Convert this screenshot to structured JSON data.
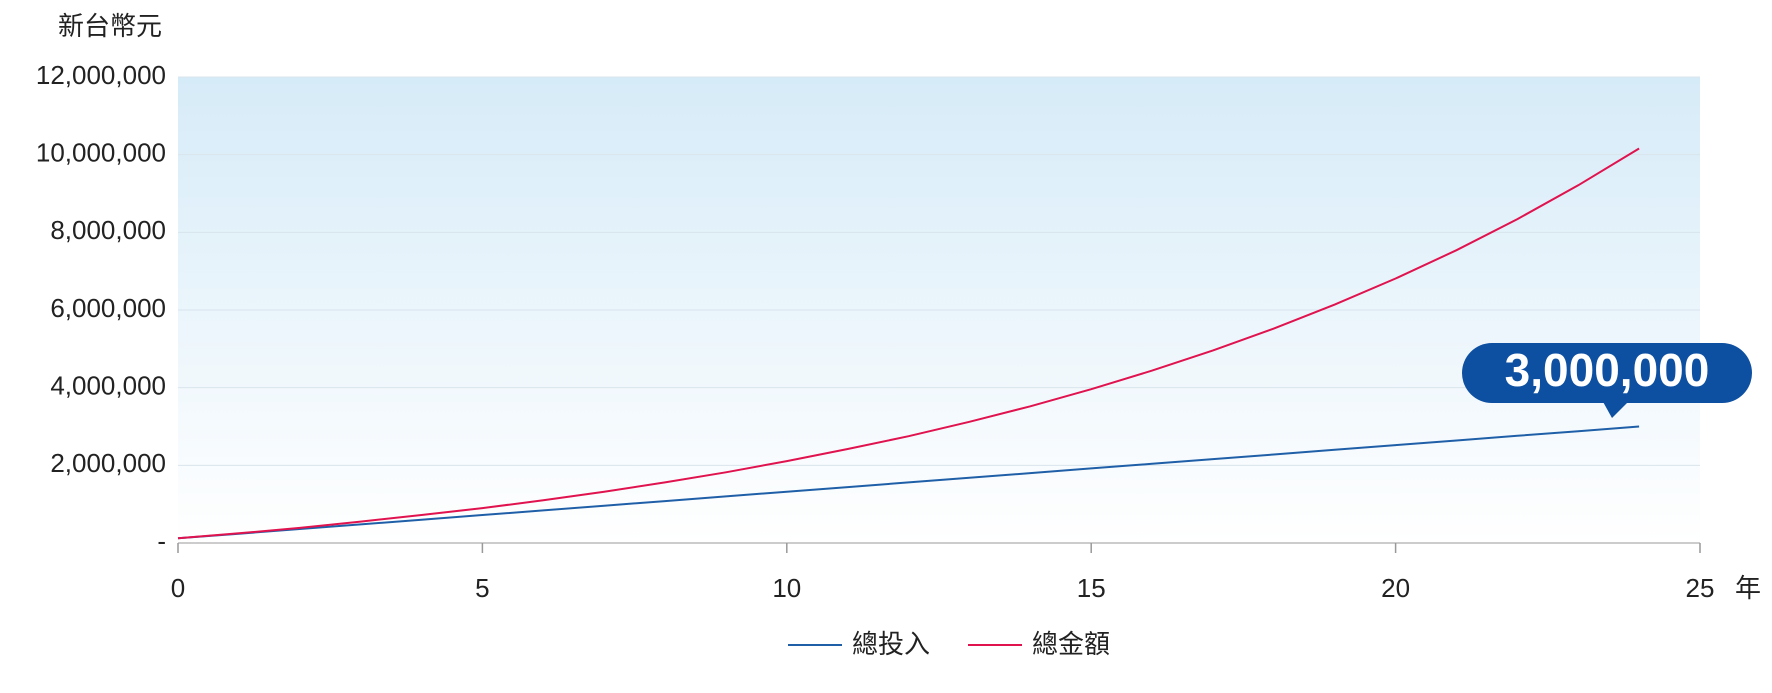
{
  "chart_data": {
    "type": "line",
    "y_label": "新台幣元",
    "x_label": "年",
    "annotation": "3,000,000",
    "x": [
      0,
      1,
      2,
      3,
      4,
      5,
      6,
      7,
      8,
      9,
      10,
      11,
      12,
      13,
      14,
      15,
      16,
      17,
      18,
      19,
      20,
      21,
      22,
      23,
      24
    ],
    "series": [
      {
        "name": "總投入",
        "color": "#1f5fa8",
        "values": [
          120000,
          240000,
          360000,
          480000,
          600000,
          720000,
          840000,
          960000,
          1080000,
          1200000,
          1320000,
          1440000,
          1560000,
          1680000,
          1800000,
          1920000,
          2040000,
          2160000,
          2280000,
          2400000,
          2520000,
          2640000,
          2760000,
          2880000,
          3000000
        ]
      },
      {
        "name": "總金額",
        "color": "#e0134f",
        "values": [
          120000,
          250000,
          390000,
          550000,
          720000,
          900000,
          1100000,
          1320000,
          1560000,
          1820000,
          2110000,
          2420000,
          2750000,
          3120000,
          3520000,
          3960000,
          4440000,
          4960000,
          5520000,
          6140000,
          6810000,
          7540000,
          8340000,
          9210000,
          10160000
        ]
      }
    ],
    "xlim": [
      0,
      25
    ],
    "xticks": [
      0,
      5,
      10,
      15,
      20,
      25
    ],
    "ylim": [
      0,
      12000000
    ],
    "yticks": [
      {
        "value": 0,
        "label": "-"
      },
      {
        "value": 2000000,
        "label": "2,000,000"
      },
      {
        "value": 4000000,
        "label": "4,000,000"
      },
      {
        "value": 6000000,
        "label": "6,000,000"
      },
      {
        "value": 8000000,
        "label": "8,000,000"
      },
      {
        "value": 10000000,
        "label": "10,000,000"
      },
      {
        "value": 12000000,
        "label": "12,000,000"
      }
    ],
    "grid": true
  }
}
